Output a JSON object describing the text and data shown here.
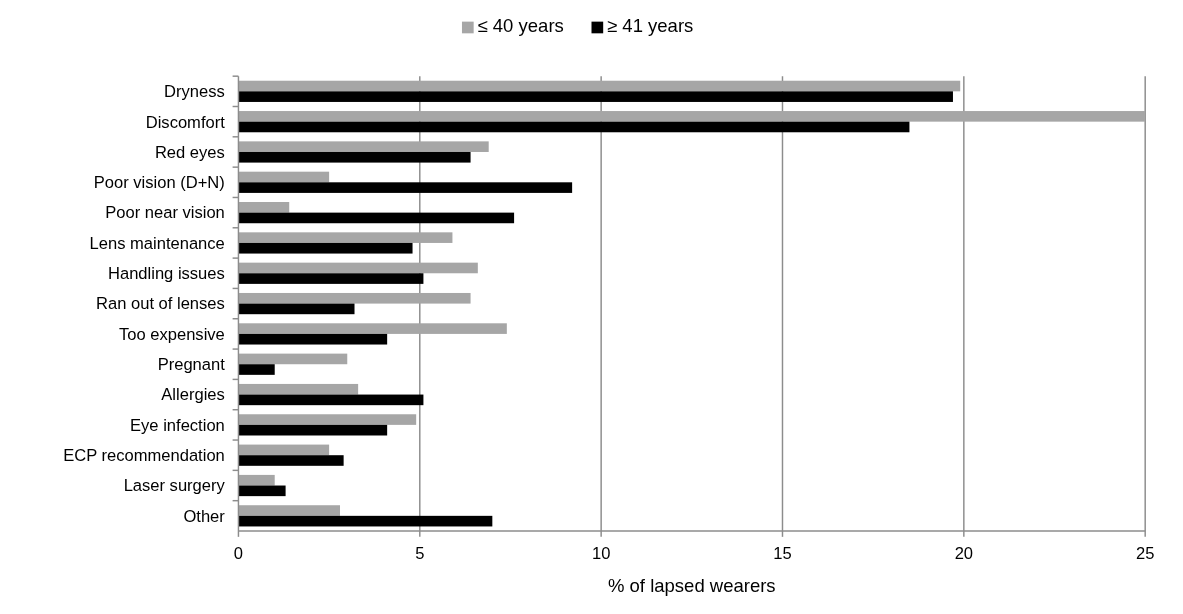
{
  "chart_data": {
    "type": "bar",
    "orientation": "horizontal",
    "xlabel": "% of lapsed wearers",
    "categories": [
      "Dryness",
      "Discomfort",
      "Red eyes",
      "Poor vision (D+N)",
      "Poor near vision",
      "Lens maintenance",
      "Handling issues",
      "Ran out of lenses",
      "Too expensive",
      "Pregnant",
      "Allergies",
      "Eye infection",
      "ECP recommendation",
      "Laser surgery",
      "Other"
    ],
    "series": [
      {
        "name": "≤ 40 years",
        "color": "#a6a6a6",
        "values": [
          19.9,
          25,
          6.9,
          2.5,
          1.4,
          5.9,
          6.6,
          6.4,
          7.4,
          3.0,
          3.3,
          4.9,
          2.5,
          1.0,
          2.8
        ]
      },
      {
        "name": "≥ 41 years",
        "color": "#000000",
        "values": [
          19.7,
          18.5,
          6.4,
          9.2,
          7.6,
          4.8,
          5.1,
          3.2,
          4.1,
          1.0,
          5.1,
          4.1,
          2.9,
          1.3,
          7.0
        ]
      }
    ],
    "xlim": [
      0,
      25
    ],
    "xticks": [
      0,
      5,
      10,
      15,
      20,
      25
    ],
    "grid": "x",
    "legend": "top"
  }
}
